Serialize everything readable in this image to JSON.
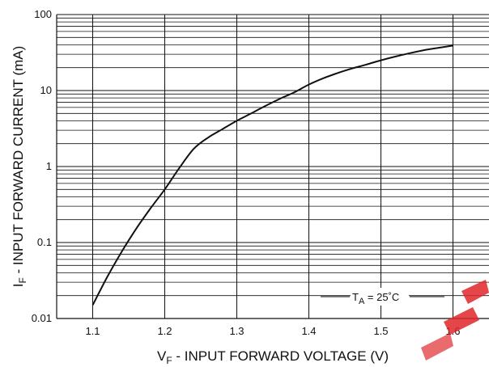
{
  "chart_data": {
    "type": "line",
    "title": "",
    "xlabel_main": "V",
    "xlabel_sub": "F",
    "xlabel_rest": " - INPUT FORWARD VOLTAGE (V)",
    "ylabel_main": "I",
    "ylabel_sub": "F",
    "ylabel_rest": " - INPUT FORWARD CURRENT (mA)",
    "xlim": [
      1.05,
      1.65
    ],
    "ylim": [
      0.01,
      100
    ],
    "yscale": "log",
    "grid": true,
    "x_ticks": [
      "1.1",
      "1.2",
      "1.3",
      "1.4",
      "1.5",
      "1.6"
    ],
    "x_tick_values": [
      1.1,
      1.2,
      1.3,
      1.4,
      1.5,
      1.6
    ],
    "y_ticks": [
      "0.01",
      "0.1",
      "1",
      "10",
      "100"
    ],
    "y_tick_values": [
      0.01,
      0.1,
      1,
      10,
      100
    ],
    "series": [
      {
        "x": [
          1.1,
          1.12,
          1.14,
          1.16,
          1.18,
          1.2,
          1.22,
          1.24,
          1.26,
          1.28,
          1.3,
          1.32,
          1.34,
          1.36,
          1.38,
          1.4,
          1.42,
          1.44,
          1.46,
          1.48,
          1.5,
          1.52,
          1.54,
          1.56,
          1.58,
          1.6
        ],
        "y": [
          0.015,
          0.035,
          0.075,
          0.15,
          0.28,
          0.5,
          0.95,
          1.7,
          2.4,
          3.1,
          4.0,
          5.0,
          6.3,
          7.8,
          9.5,
          12,
          14.5,
          17,
          19.5,
          22,
          25,
          28,
          31,
          34,
          36.5,
          39
        ]
      }
    ],
    "annotation_main": "T",
    "annotation_sub": "A",
    "annotation_rest": " = 25˚C"
  }
}
